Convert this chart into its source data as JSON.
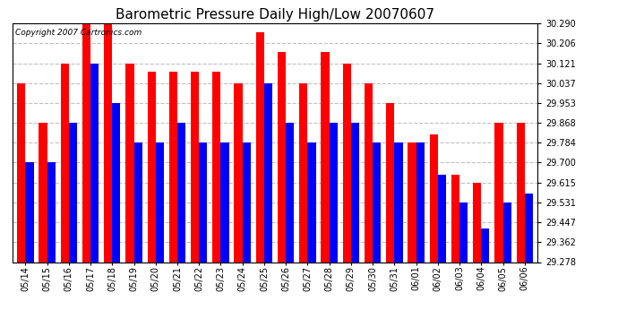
{
  "title": "Barometric Pressure Daily High/Low 20070607",
  "copyright_text": "Copyright 2007 Cartronics.com",
  "dates": [
    "05/14",
    "05/15",
    "05/16",
    "05/17",
    "05/18",
    "05/19",
    "05/20",
    "05/21",
    "05/22",
    "05/23",
    "05/24",
    "05/25",
    "05/26",
    "05/27",
    "05/28",
    "05/29",
    "05/30",
    "05/31",
    "06/01",
    "06/02",
    "06/03",
    "06/04",
    "06/05",
    "06/06"
  ],
  "highs": [
    30.037,
    29.868,
    30.121,
    30.29,
    30.29,
    30.121,
    30.084,
    30.084,
    30.084,
    30.084,
    30.037,
    30.253,
    30.168,
    30.037,
    30.168,
    30.121,
    30.037,
    29.953,
    29.784,
    29.82,
    29.65,
    29.615,
    29.868,
    29.868
  ],
  "lows": [
    29.7,
    29.7,
    29.868,
    30.121,
    29.953,
    29.784,
    29.784,
    29.868,
    29.784,
    29.784,
    29.784,
    30.037,
    29.868,
    29.784,
    29.868,
    29.868,
    29.784,
    29.784,
    29.784,
    29.65,
    29.531,
    29.42,
    29.531,
    29.57
  ],
  "high_color": "#ff0000",
  "low_color": "#0000ff",
  "ylim_min": 29.278,
  "ylim_max": 30.29,
  "yticks": [
    29.278,
    29.362,
    29.447,
    29.531,
    29.615,
    29.7,
    29.784,
    29.868,
    29.953,
    30.037,
    30.121,
    30.206,
    30.29
  ],
  "background_color": "#ffffff",
  "grid_color": "#c0c0c0",
  "title_fontsize": 11,
  "tick_fontsize": 7,
  "bar_width": 0.38,
  "copyright_fontsize": 6.5
}
